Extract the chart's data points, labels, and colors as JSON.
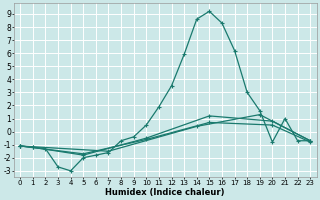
{
  "xlabel": "Humidex (Indice chaleur)",
  "bg_color": "#cce8e8",
  "grid_color": "#ffffff",
  "line_color": "#1a7a6e",
  "xlim": [
    -0.5,
    23.5
  ],
  "ylim": [
    -3.5,
    9.8
  ],
  "xticks": [
    0,
    1,
    2,
    3,
    4,
    5,
    6,
    7,
    8,
    9,
    10,
    11,
    12,
    13,
    14,
    15,
    16,
    17,
    18,
    19,
    20,
    21,
    22,
    23
  ],
  "yticks": [
    -3,
    -2,
    -1,
    0,
    1,
    2,
    3,
    4,
    5,
    6,
    7,
    8,
    9
  ],
  "main_x": [
    0,
    1,
    2,
    3,
    4,
    5,
    6,
    7,
    8,
    9,
    10,
    11,
    12,
    13,
    14,
    15,
    16,
    17,
    18,
    19,
    20,
    21,
    22,
    23
  ],
  "main_y": [
    -1.1,
    -1.2,
    -1.3,
    -2.7,
    -3.0,
    -2.0,
    -1.8,
    -1.6,
    -0.7,
    -0.4,
    0.5,
    1.9,
    3.5,
    5.9,
    8.6,
    9.2,
    8.3,
    6.2,
    3.0,
    1.6,
    -0.8,
    1.0,
    -0.7,
    -0.7
  ],
  "trend1_x": [
    0,
    1,
    5,
    10,
    15,
    20,
    23
  ],
  "trend1_y": [
    -1.1,
    -1.2,
    -1.8,
    -0.5,
    1.2,
    0.8,
    -0.7
  ],
  "trend2_x": [
    0,
    7,
    14,
    19,
    23
  ],
  "trend2_y": [
    -1.1,
    -1.5,
    0.4,
    1.3,
    -0.7
  ],
  "trend3_x": [
    0,
    5,
    10,
    15,
    20,
    23
  ],
  "trend3_y": [
    -1.1,
    -1.7,
    -0.6,
    0.7,
    0.5,
    -0.8
  ]
}
